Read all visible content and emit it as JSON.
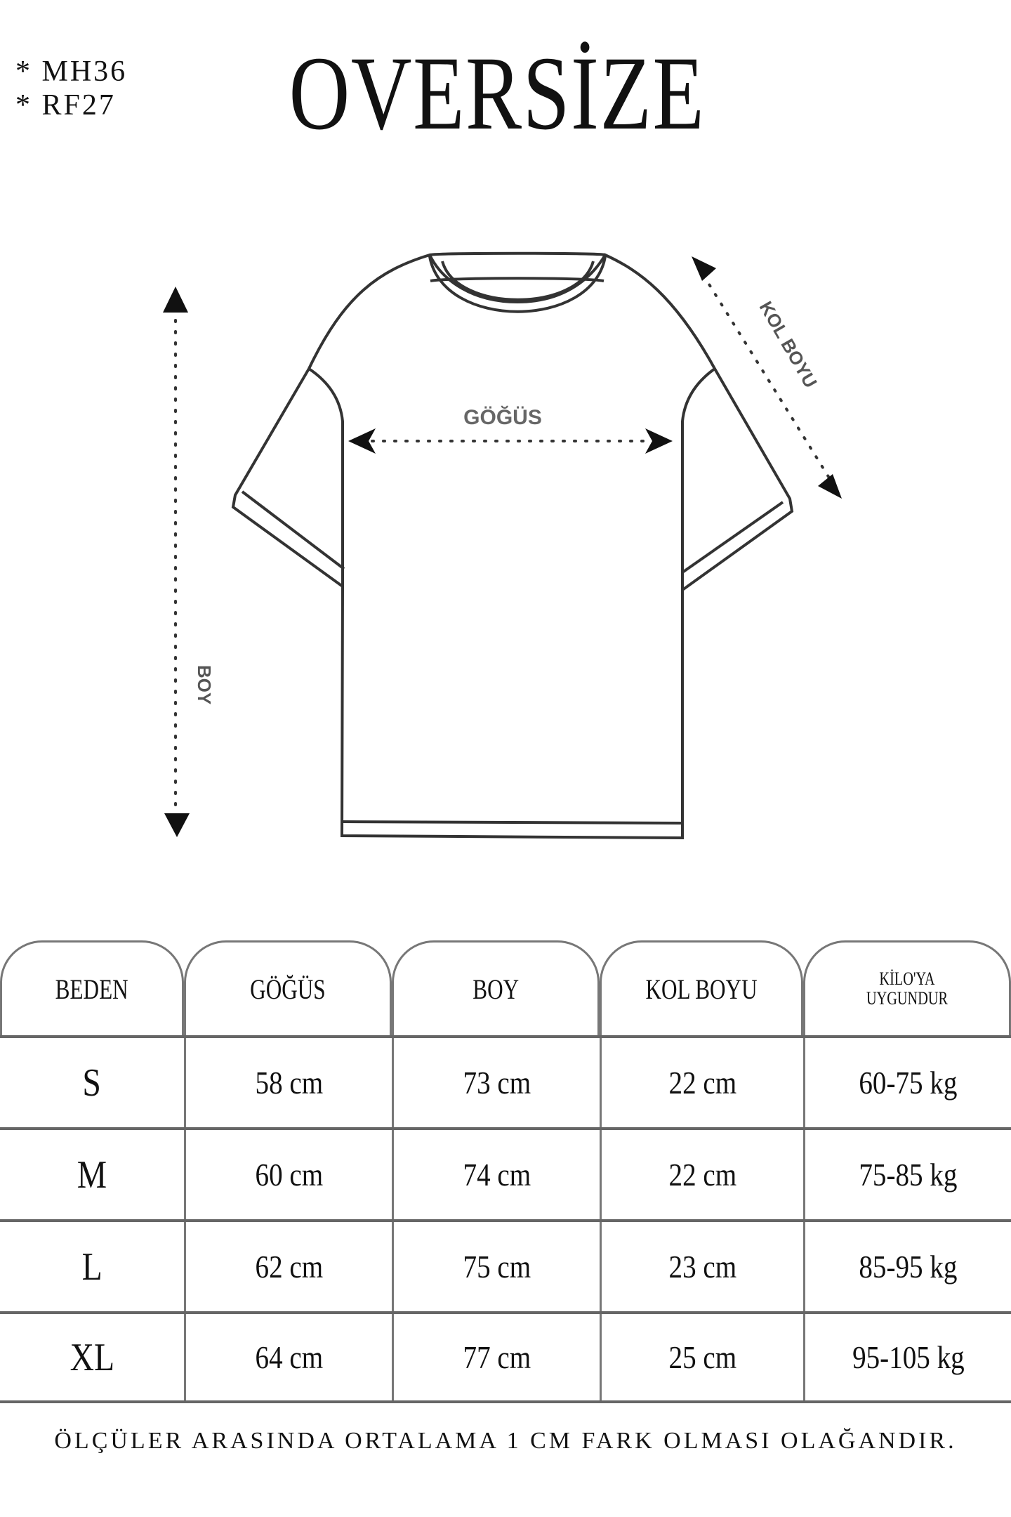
{
  "codes": [
    "* MH36",
    "* RF27"
  ],
  "title": "OVERSİZE",
  "diagram": {
    "chest_label": "GÖĞÜS",
    "length_label": "BOY",
    "sleeve_label": "KOL BOYU"
  },
  "table": {
    "headers": [
      "BEDEN",
      "GÖĞÜS",
      "BOY",
      "KOL BOYU",
      "KİLO'YA UYGUNDUR"
    ],
    "rows": [
      [
        "S",
        "58 cm",
        "73 cm",
        "22  cm",
        "60-75 kg"
      ],
      [
        "M",
        "60 cm",
        "74 cm",
        "22 cm",
        "75-85 kg"
      ],
      [
        "L",
        "62 cm",
        "75 cm",
        "23 cm",
        "85-95 kg"
      ],
      [
        "XL",
        "64 cm",
        "77 cm",
        "25 cm",
        "95-105 kg"
      ]
    ]
  },
  "footer": "ÖLÇÜLER ARASINDA ORTALAMA 1 CM FARK OLMASI OLAĞANDIR."
}
